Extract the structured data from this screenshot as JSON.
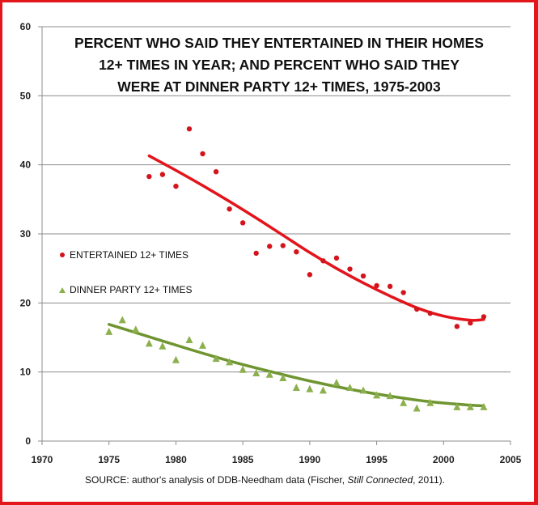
{
  "chart_data": {
    "type": "scatter",
    "title_lines": [
      "PERCENT WHO SAID THEY ENTERTAINED  IN THEIR HOMES",
      "12+ TIMES  IN YEAR; AND PERCENT  WHO SAID THEY",
      "WERE AT DINNER PARTY 12+ TIMES,  1975-2003"
    ],
    "xlabel": "",
    "ylabel": "",
    "xlim": [
      1970,
      2005
    ],
    "ylim": [
      0,
      60
    ],
    "x_ticks": [
      "1970",
      "1975",
      "1980",
      "1985",
      "1990",
      "1995",
      "2000",
      "2005"
    ],
    "y_ticks": [
      "0",
      "10",
      "20",
      "30",
      "40",
      "50",
      "60"
    ],
    "grid": "horizontal",
    "legend_placement": "left-middle",
    "source_prefix": "SOURCE: author's analysis of DDB-Needham data (Fischer, ",
    "source_italic": "Still Connected",
    "source_suffix": ", 2011).",
    "series": [
      {
        "name": "ENTERTAINED 12+ TIMES",
        "marker": "circle",
        "color": "#d4141c",
        "x": [
          1978,
          1979,
          1980,
          1981,
          1982,
          1983,
          1984,
          1985,
          1986,
          1987,
          1988,
          1989,
          1990,
          1991,
          1992,
          1993,
          1994,
          1995,
          1996,
          1997,
          1998,
          1999,
          2001,
          2002,
          2003
        ],
        "values": [
          38.3,
          38.6,
          36.9,
          45.2,
          41.6,
          39.0,
          33.6,
          31.6,
          27.2,
          28.2,
          28.3,
          27.4,
          24.1,
          26.1,
          26.5,
          24.9,
          23.9,
          22.5,
          22.4,
          21.5,
          19.1,
          18.5,
          16.6,
          17.1,
          18.0
        ],
        "trend": {
          "color": "#e3141b",
          "x": [
            1978,
            1980,
            1982,
            1984,
            1986,
            1988,
            1990,
            1992,
            1994,
            1996,
            1998,
            2000,
            2002,
            2003
          ],
          "values": [
            41.3,
            39.2,
            37.0,
            34.7,
            32.3,
            29.8,
            27.3,
            25.0,
            22.9,
            21.0,
            19.3,
            18.1,
            17.5,
            17.6
          ]
        }
      },
      {
        "name": "DINNER PARTY 12+ TIMES",
        "marker": "triangle",
        "color": "#8db04e",
        "x": [
          1975,
          1976,
          1977,
          1978,
          1979,
          1980,
          1981,
          1982,
          1983,
          1984,
          1985,
          1986,
          1987,
          1988,
          1989,
          1990,
          1991,
          1992,
          1993,
          1994,
          1995,
          1996,
          1997,
          1998,
          1999,
          2001,
          2002,
          2003
        ],
        "values": [
          15.9,
          17.6,
          16.2,
          14.2,
          13.8,
          11.8,
          14.7,
          13.9,
          12.0,
          11.5,
          10.4,
          9.9,
          9.7,
          9.2,
          7.8,
          7.6,
          7.4,
          8.5,
          7.8,
          7.4,
          6.7,
          6.6,
          5.6,
          4.8,
          5.6,
          5.0,
          5.0,
          5.0
        ],
        "trend": {
          "color": "#6f9530",
          "x": [
            1975,
            1978,
            1981,
            1984,
            1987,
            1990,
            1993,
            1996,
            1999,
            2002,
            2003
          ],
          "values": [
            16.9,
            15.1,
            13.3,
            11.6,
            10.1,
            8.7,
            7.5,
            6.5,
            5.7,
            5.2,
            5.1
          ]
        }
      }
    ]
  }
}
